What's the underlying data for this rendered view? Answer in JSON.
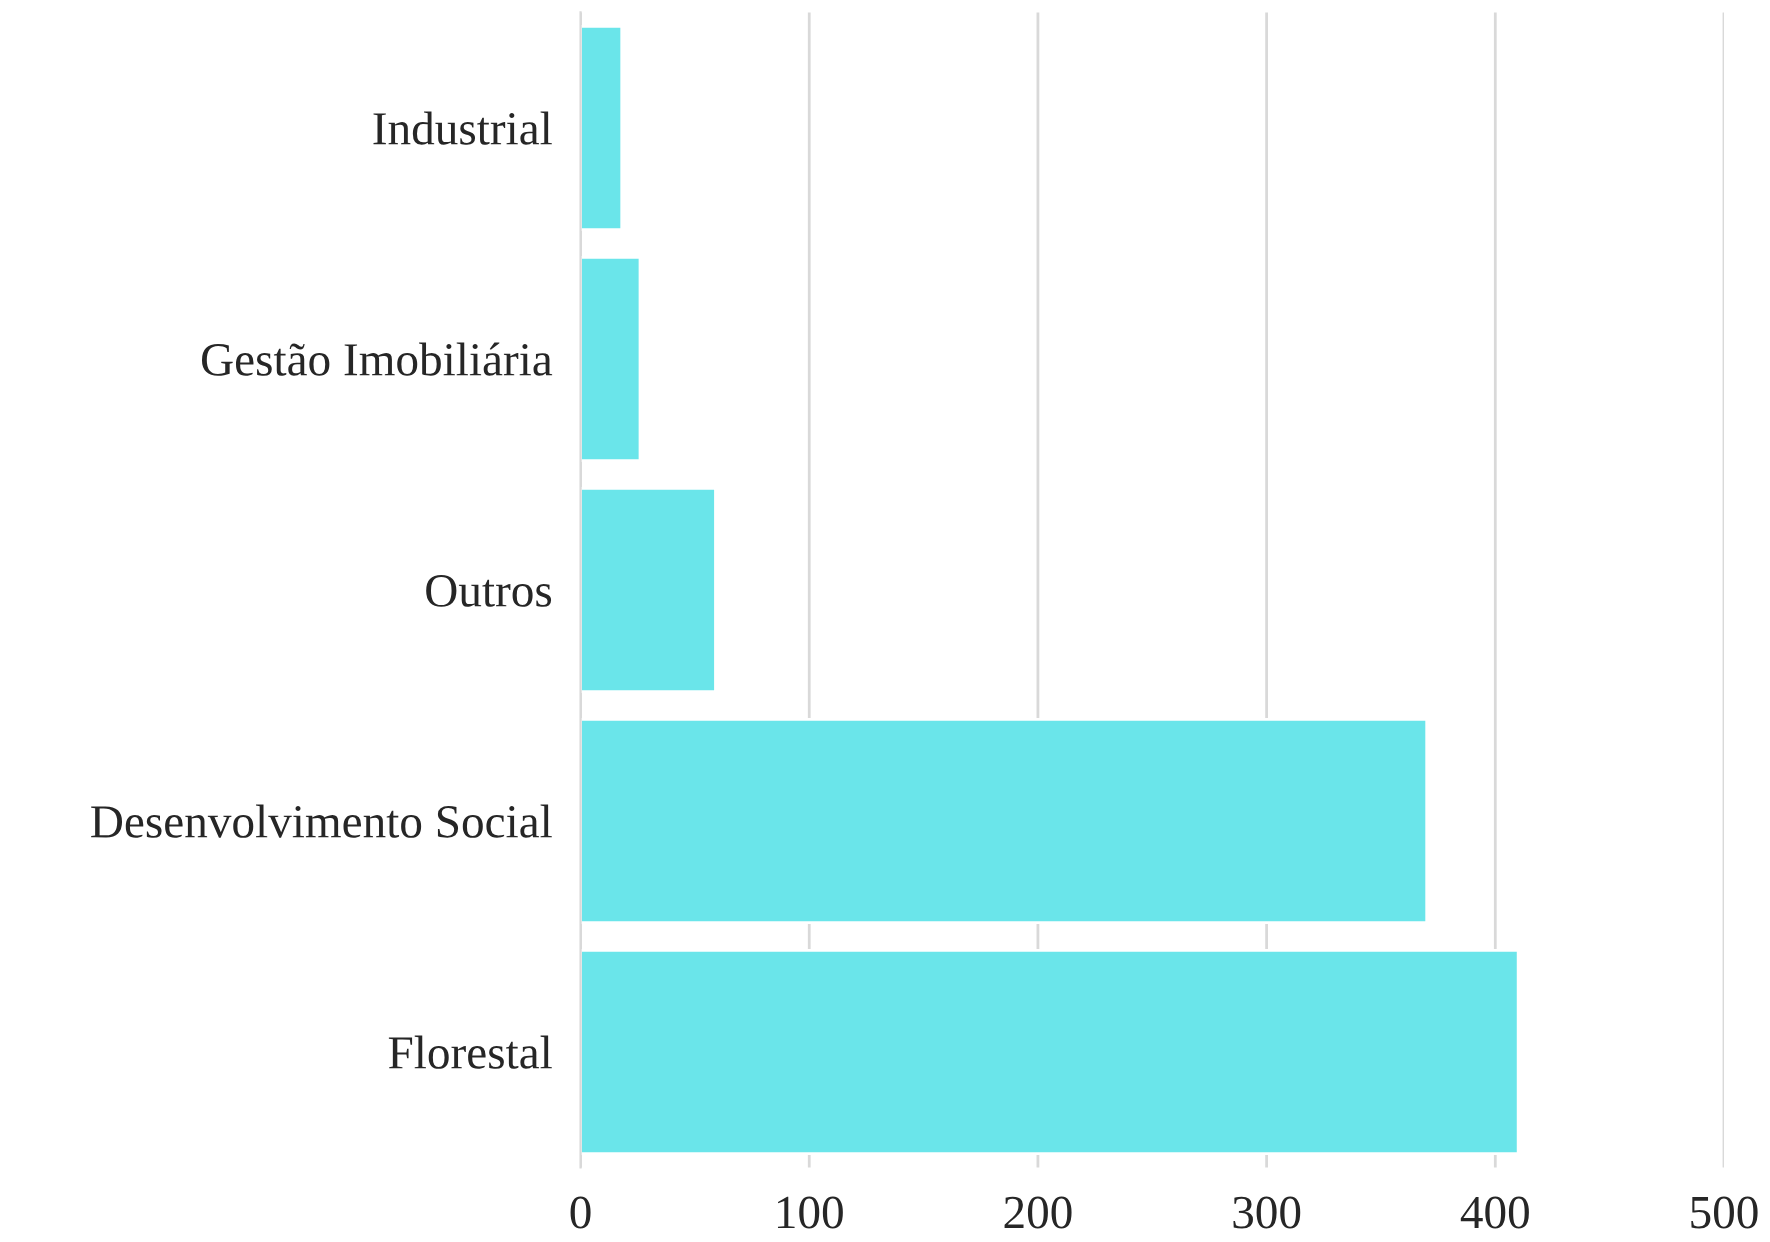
{
  "chart_data": {
    "type": "bar",
    "orientation": "horizontal",
    "categories": [
      "Industrial",
      "Gestão Imobiliária",
      "Outros",
      "Desenvolvimento Social",
      "Florestal"
    ],
    "values": [
      18,
      26,
      59,
      370,
      410
    ],
    "color": "#6ae5ea",
    "xlim": [
      0,
      500
    ],
    "xticks": [
      0,
      100,
      200,
      300,
      400,
      500
    ],
    "grid": "x"
  }
}
